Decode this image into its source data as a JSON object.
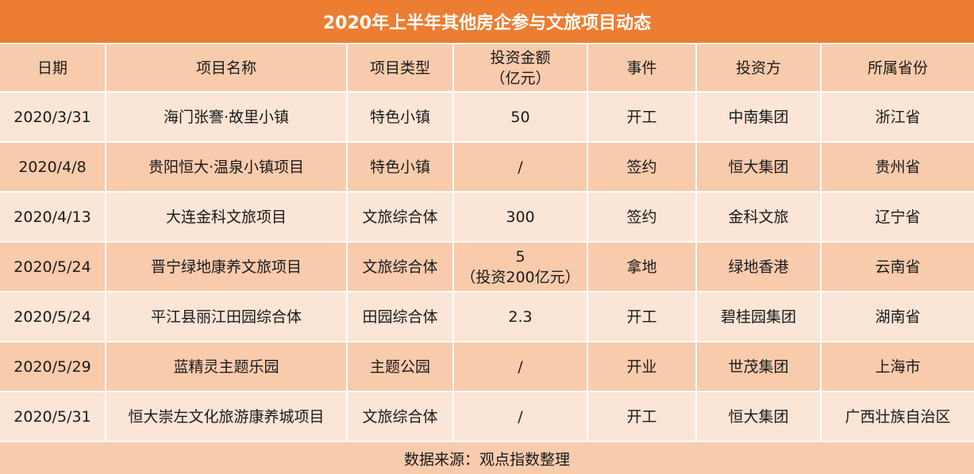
{
  "title": "2020年上半年其他房企参与文旅项目动态",
  "headers": {
    "date": "日期",
    "name": "项目名称",
    "type": "项目类型",
    "amount_line1": "投资金额",
    "amount_line2": "（亿元）",
    "event": "事件",
    "investor": "投资方",
    "province": "所属省份"
  },
  "rows": [
    {
      "date": "2020/3/31",
      "name": "海门张謇·故里小镇",
      "type": "特色小镇",
      "amount": "50",
      "amount_note": "",
      "event": "开工",
      "investor": "中南集团",
      "province": "浙江省"
    },
    {
      "date": "2020/4/8",
      "name": "贵阳恒大·温泉小镇项目",
      "type": "特色小镇",
      "amount": "/",
      "amount_note": "",
      "event": "签约",
      "investor": "恒大集团",
      "province": "贵州省"
    },
    {
      "date": "2020/4/13",
      "name": "大连金科文旅项目",
      "type": "文旅综合体",
      "amount": "300",
      "amount_note": "",
      "event": "签约",
      "investor": "金科文旅",
      "province": "辽宁省"
    },
    {
      "date": "2020/5/24",
      "name": "晋宁绿地康养文旅项目",
      "type": "文旅综合体",
      "amount": "5",
      "amount_note": "（投资200亿元）",
      "event": "拿地",
      "investor": "绿地香港",
      "province": "云南省"
    },
    {
      "date": "2020/5/24",
      "name": "平江县丽江田园综合体",
      "type": "田园综合体",
      "amount": "2.3",
      "amount_note": "",
      "event": "开工",
      "investor": "碧桂园集团",
      "province": "湖南省"
    },
    {
      "date": "2020/5/29",
      "name": "蓝精灵主题乐园",
      "type": "主题公园",
      "amount": "/",
      "amount_note": "",
      "event": "开业",
      "investor": "世茂集团",
      "province": "上海市"
    },
    {
      "date": "2020/5/31",
      "name": "恒大崇左文化旅游康养城项目",
      "type": "文旅综合体",
      "amount": "/",
      "amount_note": "",
      "event": "开工",
      "investor": "恒大集团",
      "province": "广西壮族自治区"
    }
  ],
  "footer": "数据来源：观点指数整理",
  "colors": {
    "title_bg": "#ED7D31",
    "header_bg": "#F8CBAD",
    "row_light": "#FBE5D6",
    "row_dark": "#F8CBAD"
  }
}
